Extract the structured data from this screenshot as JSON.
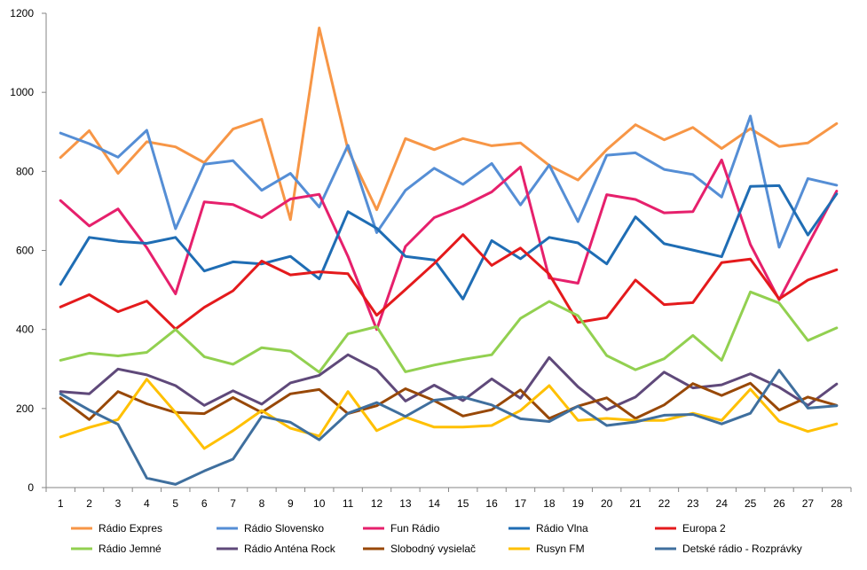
{
  "chart_data": {
    "type": "line",
    "title": "",
    "xlabel": "",
    "ylabel": "",
    "ylim": [
      0,
      1200
    ],
    "yticks": [
      0,
      200,
      400,
      600,
      800,
      1000,
      1200
    ],
    "grid": false,
    "legend_position": "bottom",
    "x": [
      1,
      2,
      3,
      4,
      5,
      6,
      7,
      8,
      9,
      10,
      11,
      12,
      13,
      14,
      15,
      16,
      17,
      18,
      19,
      20,
      21,
      22,
      23,
      24,
      25,
      26,
      27,
      28
    ],
    "series": [
      {
        "name": "Rádio Expres",
        "color": "#F79646",
        "values": [
          835,
          903,
          795,
          875,
          862,
          822,
          907,
          932,
          678,
          1163,
          855,
          703,
          883,
          855,
          883,
          865,
          872,
          815,
          778,
          855,
          918,
          880,
          911,
          858,
          908,
          863,
          872,
          921
        ]
      },
      {
        "name": "Rádio Slovensko",
        "color": "#558ED5",
        "values": [
          897,
          870,
          836,
          904,
          655,
          818,
          827,
          752,
          795,
          710,
          866,
          645,
          752,
          808,
          767,
          820,
          715,
          816,
          673,
          841,
          847,
          805,
          792,
          735,
          940,
          608,
          782,
          765
        ]
      },
      {
        "name": "Fun Rádio",
        "color": "#E6206C",
        "values": [
          726,
          662,
          705,
          607,
          490,
          723,
          716,
          683,
          730,
          742,
          585,
          400,
          610,
          683,
          712,
          748,
          811,
          530,
          517,
          741,
          729,
          695,
          698,
          829,
          615,
          475,
          614,
          750
        ]
      },
      {
        "name": "Rádio Vlna",
        "color": "#1F6DB4",
        "values": [
          514,
          633,
          623,
          618,
          633,
          548,
          571,
          566,
          585,
          528,
          698,
          656,
          585,
          576,
          477,
          625,
          579,
          633,
          619,
          566,
          685,
          617,
          601,
          584,
          762,
          764,
          639,
          743
        ]
      },
      {
        "name": "Europa 2",
        "color": "#E41A1C",
        "values": [
          457,
          488,
          445,
          472,
          401,
          456,
          498,
          573,
          538,
          546,
          541,
          436,
          501,
          567,
          640,
          562,
          606,
          540,
          418,
          430,
          525,
          463,
          468,
          569,
          578,
          477,
          525,
          551
        ]
      },
      {
        "name": "Rádio Jemné",
        "color": "#92D050",
        "values": [
          322,
          340,
          333,
          342,
          400,
          331,
          312,
          354,
          345,
          292,
          389,
          407,
          293,
          310,
          324,
          336,
          428,
          471,
          435,
          334,
          298,
          326,
          385,
          322,
          495,
          467,
          372,
          404
        ]
      },
      {
        "name": "Rádio Anténa Rock",
        "color": "#5F497A",
        "values": [
          243,
          237,
          300,
          285,
          258,
          208,
          245,
          211,
          265,
          284,
          336,
          298,
          219,
          259,
          220,
          275,
          226,
          329,
          255,
          197,
          229,
          292,
          252,
          260,
          288,
          254,
          208,
          262
        ]
      },
      {
        "name": "Slobodný vysielač",
        "color": "#984807",
        "values": [
          227,
          172,
          243,
          212,
          190,
          187,
          228,
          190,
          237,
          248,
          187,
          207,
          250,
          220,
          181,
          197,
          247,
          175,
          206,
          227,
          175,
          209,
          263,
          233,
          264,
          196,
          229,
          208
        ]
      },
      {
        "name": "Rusyn FM",
        "color": "#FFC000",
        "values": [
          128,
          152,
          172,
          274,
          190,
          99,
          144,
          195,
          150,
          130,
          243,
          144,
          178,
          153,
          153,
          157,
          195,
          258,
          170,
          175,
          170,
          170,
          188,
          170,
          249,
          168,
          142,
          161
        ]
      },
      {
        "name": "Detské rádio - Rozprávky",
        "color": "#3F6F9E",
        "values": [
          237,
          196,
          160,
          24,
          8,
          42,
          72,
          180,
          165,
          121,
          188,
          215,
          180,
          221,
          229,
          209,
          174,
          167,
          206,
          157,
          166,
          183,
          185,
          161,
          188,
          297,
          201,
          207
        ]
      }
    ]
  }
}
